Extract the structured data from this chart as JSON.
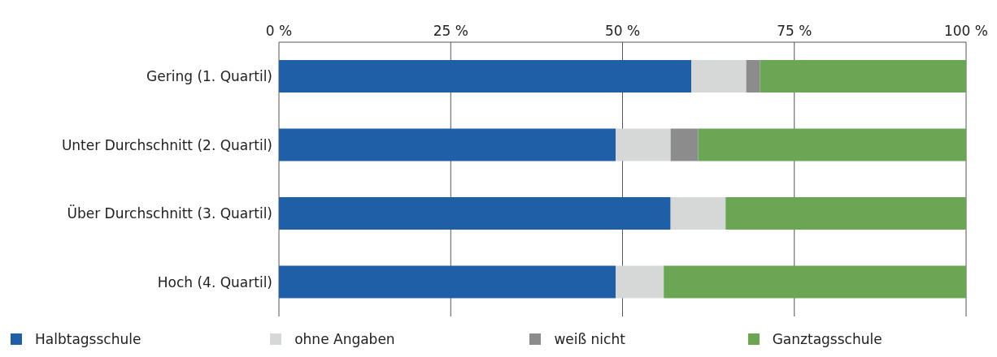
{
  "chart_data": {
    "type": "bar",
    "orientation": "horizontal",
    "stacked": true,
    "categories": [
      "Gering (1. Quartil)",
      "Unter Durchschnitt (2. Quartil)",
      "Über Durchschnitt (3. Quartil)",
      "Hoch (4. Quartil)"
    ],
    "series": [
      {
        "name": "Halbtagsschule",
        "color": "#1f5fa8",
        "values": [
          60,
          49,
          57,
          49
        ]
      },
      {
        "name": "ohne Angaben",
        "color": "#d6d8d8",
        "values": [
          8,
          8,
          8,
          7
        ]
      },
      {
        "name": "weiß nicht",
        "color": "#8c8c8c",
        "values": [
          2,
          4,
          0,
          0
        ]
      },
      {
        "name": "Ganztagsschule",
        "color": "#6aa654",
        "values": [
          30,
          39,
          35,
          44
        ]
      }
    ],
    "xlim": [
      0,
      100
    ],
    "xticks": [
      {
        "value": 0,
        "label": "0 %"
      },
      {
        "value": 25,
        "label": "25 %"
      },
      {
        "value": 50,
        "label": "50 %"
      },
      {
        "value": 75,
        "label": "75 %"
      },
      {
        "value": 100,
        "label": "100 %"
      }
    ],
    "grid": "x",
    "legend": "bottom"
  }
}
